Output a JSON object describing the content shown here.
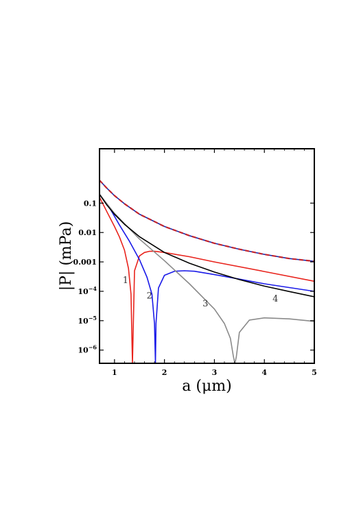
{
  "chart_data": {
    "type": "line",
    "title": "",
    "xlabel": "a (μm)",
    "ylabel": "|P| (mPa)",
    "x_scale": "linear",
    "y_scale": "log",
    "xlim": [
      0.7,
      5
    ],
    "ylim_log10": [
      -6.45,
      0.85
    ],
    "grid": false,
    "x_ticks": [
      {
        "value": 1,
        "label": "1"
      },
      {
        "value": 2,
        "label": "2"
      },
      {
        "value": 3,
        "label": "3"
      },
      {
        "value": 4,
        "label": "4"
      },
      {
        "value": 5,
        "label": "5"
      }
    ],
    "y_ticks": [
      {
        "log": -1,
        "base": "0.1",
        "exp": ""
      },
      {
        "log": -2,
        "base": "0.01",
        "exp": ""
      },
      {
        "log": -3,
        "base": "0.001",
        "exp": ""
      },
      {
        "log": -4,
        "base": "10",
        "exp": "−4"
      },
      {
        "log": -5,
        "base": "10",
        "exp": "−5"
      },
      {
        "log": -6,
        "base": "10",
        "exp": "−6"
      }
    ],
    "series": [
      {
        "color": "#e8221b",
        "style": "solid",
        "x": [
          0.7,
          0.85,
          1.0,
          1.1,
          1.2,
          1.28,
          1.33,
          1.35,
          1.36,
          1.4,
          1.5,
          1.6,
          1.7,
          1.8,
          2.0,
          2.5,
          3.0,
          4.0,
          5.0
        ],
        "y": [
          0.16,
          0.05,
          0.016,
          0.007,
          0.0025,
          0.0006,
          8e-05,
          2e-06,
          3.5e-07,
          0.0005,
          0.0016,
          0.0021,
          0.0023,
          0.0023,
          0.0021,
          0.0015,
          0.001,
          0.00047,
          0.00022
        ]
      },
      {
        "color": "#1a1ae8",
        "style": "solid",
        "x": [
          0.7,
          0.9,
          1.1,
          1.3,
          1.5,
          1.65,
          1.75,
          1.8,
          1.82,
          1.83,
          1.88,
          2.0,
          2.2,
          2.4,
          2.6,
          3.0,
          3.5,
          4.0,
          5.0
        ],
        "y": [
          0.2,
          0.07,
          0.018,
          0.005,
          0.0012,
          0.0003,
          8e-05,
          8e-06,
          3.5e-07,
          8e-06,
          0.00013,
          0.00035,
          0.00048,
          0.0005,
          0.00048,
          0.00037,
          0.00026,
          0.00018,
          0.0001
        ]
      },
      {
        "color": "#8a8a8a",
        "style": "solid",
        "x": [
          0.7,
          1.0,
          1.5,
          2.0,
          2.5,
          3.0,
          3.2,
          3.32,
          3.38,
          3.41,
          3.44,
          3.5,
          3.7,
          4.0,
          4.5,
          5.0
        ],
        "y": [
          0.2,
          0.045,
          0.006,
          0.0011,
          0.00018,
          2.5e-05,
          8e-06,
          2.5e-06,
          6e-07,
          3.5e-07,
          6e-07,
          4e-06,
          1.05e-05,
          1.25e-05,
          1.15e-05,
          9.5e-06
        ]
      },
      {
        "color": "#000000",
        "style": "solid",
        "x": [
          0.7,
          0.85,
          1.0,
          1.2,
          1.5,
          2.0,
          2.5,
          3.0,
          3.5,
          4.0,
          4.5,
          5.0
        ],
        "y": [
          0.2,
          0.085,
          0.042,
          0.019,
          0.0072,
          0.0021,
          0.0009,
          0.00045,
          0.00025,
          0.00015,
          9.8e-05,
          6.5e-05
        ]
      },
      {
        "color": "#1c2aa8",
        "style": "solid",
        "x": [
          0.7,
          0.85,
          1.0,
          1.2,
          1.5,
          2.0,
          2.5,
          3.0,
          3.5,
          4.0,
          4.5,
          5.0
        ],
        "y": [
          0.6,
          0.32,
          0.18,
          0.095,
          0.042,
          0.016,
          0.0078,
          0.0043,
          0.0027,
          0.0018,
          0.0013,
          0.00105
        ]
      },
      {
        "color": "#c4242c",
        "style": "dashed",
        "x": [
          0.7,
          0.85,
          1.0,
          1.2,
          1.5,
          2.0,
          2.5,
          3.0,
          3.5,
          4.0,
          4.5,
          5.0
        ],
        "y": [
          0.6,
          0.32,
          0.18,
          0.095,
          0.042,
          0.016,
          0.0078,
          0.0043,
          0.0027,
          0.0018,
          0.0013,
          0.00105
        ]
      }
    ],
    "annotations": [
      {
        "text": "1",
        "x": 1.22,
        "y": 0.00019
      },
      {
        "text": "2",
        "x": 1.7,
        "y": 5.6e-05
      },
      {
        "text": "3",
        "x": 2.82,
        "y": 3.1e-05
      },
      {
        "text": "4",
        "x": 4.22,
        "y": 4.5e-05
      }
    ]
  }
}
